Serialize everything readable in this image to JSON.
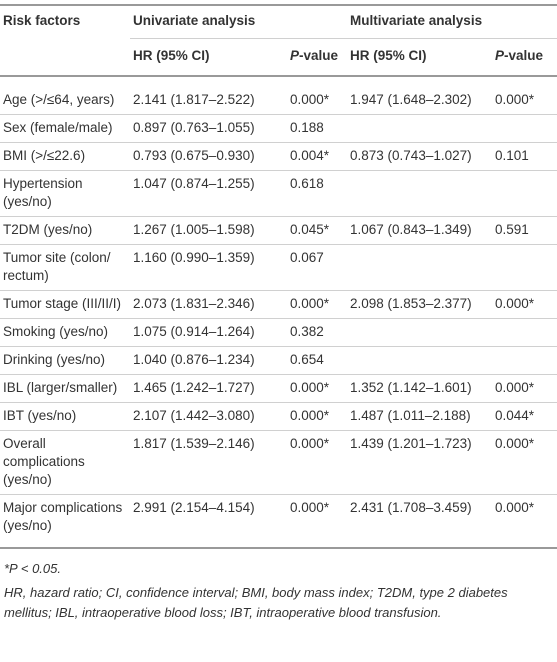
{
  "table": {
    "header": {
      "risk_factors": "Risk factors",
      "univariate": "Univariate analysis",
      "multivariate": "Multivariate analysis",
      "hr": "HR (95% CI)",
      "p_italic": "P",
      "p_rest": "-value"
    },
    "rows": [
      [
        "Age (>/≤64, years)",
        "2.141 (1.817–2.522)",
        "0.000*",
        "1.947 (1.648–2.302)",
        "0.000*"
      ],
      [
        "Sex (female/male)",
        "0.897 (0.763–1.055)",
        "0.188",
        null,
        null
      ],
      [
        "BMI (>/≤22.6)",
        "0.793 (0.675–0.930)",
        "0.004*",
        "0.873 (0.743–1.027)",
        "0.101"
      ],
      [
        "Hypertension (yes/no)",
        "1.047 (0.874–1.255)",
        "0.618",
        null,
        null
      ],
      [
        "T2DM (yes/no)",
        "1.267 (1.005–1.598)",
        "0.045*",
        "1.067 (0.843–1.349)",
        "0.591"
      ],
      [
        "Tumor site (colon/ rectum)",
        "1.160 (0.990–1.359)",
        "0.067",
        null,
        null
      ],
      [
        "Tumor stage (III/II/I)",
        "2.073 (1.831–2.346)",
        "0.000*",
        "2.098 (1.853–2.377)",
        "0.000*"
      ],
      [
        "Smoking (yes/no)",
        "1.075 (0.914–1.264)",
        "0.382",
        null,
        null
      ],
      [
        "Drinking (yes/no)",
        "1.040 (0.876–1.234)",
        "0.654",
        null,
        null
      ],
      [
        "IBL (larger/smaller)",
        "1.465 (1.242–1.727)",
        "0.000*",
        "1.352 (1.142–1.601)",
        "0.000*"
      ],
      [
        "IBT (yes/no)",
        "2.107 (1.442–3.080)",
        "0.000*",
        "1.487 (1.011–2.188)",
        "0.044*"
      ],
      [
        "Overall complications (yes/no)",
        "1.817 (1.539–2.146)",
        "0.000*",
        "1.439 (1.201–1.723)",
        "0.000*"
      ],
      [
        "Major complications (yes/no)",
        "2.991 (2.154–4.154)",
        "0.000*",
        "2.431 (1.708–3.459)",
        "0.000*"
      ]
    ],
    "footnotes": [
      "*P < 0.05.",
      "HR, hazard ratio; CI, confidence interval; BMI, body mass index; T2DM, type 2 diabetes mellitus; IBL, intraoperative blood loss; IBT, intraoperative blood transfusion."
    ]
  }
}
